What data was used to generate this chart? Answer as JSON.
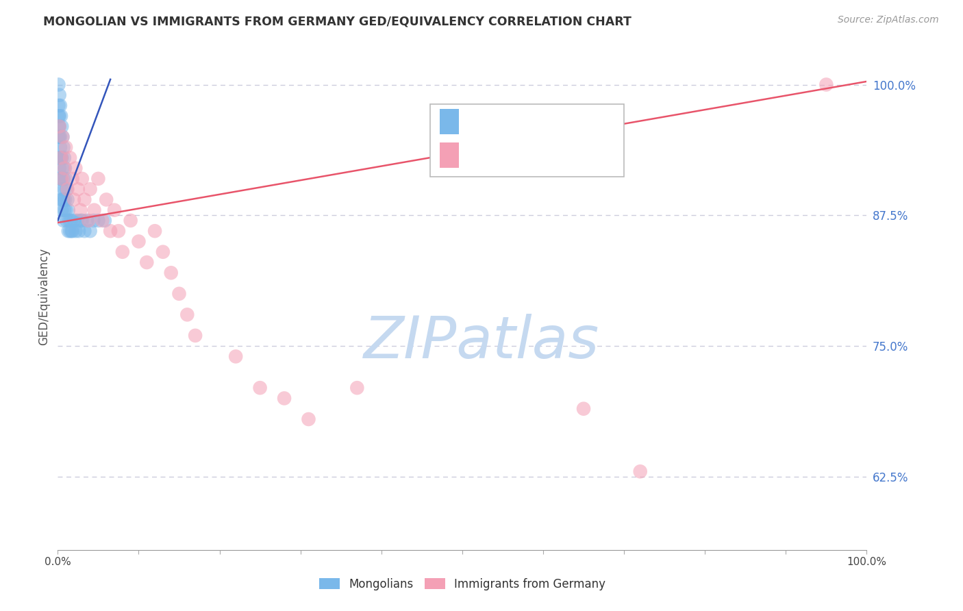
{
  "title": "MONGOLIAN VS IMMIGRANTS FROM GERMANY GED/EQUIVALENCY CORRELATION CHART",
  "source": "Source: ZipAtlas.com",
  "ylabel": "GED/Equivalency",
  "ytick_labels": [
    "62.5%",
    "75.0%",
    "87.5%",
    "100.0%"
  ],
  "ytick_values": [
    0.625,
    0.75,
    0.875,
    1.0
  ],
  "xlim": [
    0.0,
    1.0
  ],
  "ylim": [
    0.555,
    1.04
  ],
  "label_mongolians": "Mongolians",
  "label_germany": "Immigrants from Germany",
  "color_blue": "#7ab8ea",
  "color_pink": "#f4a0b5",
  "color_blue_line": "#3355bb",
  "color_pink_line": "#e8546a",
  "color_ytick": "#4477cc",
  "color_title": "#333333",
  "color_source": "#999999",
  "background_color": "#ffffff",
  "grid_color": "#ccccdd",
  "watermark_color": "#c5d9f0",
  "mongolian_x": [
    0.001,
    0.001,
    0.001,
    0.001,
    0.001,
    0.002,
    0.002,
    0.002,
    0.002,
    0.002,
    0.002,
    0.003,
    0.003,
    0.003,
    0.003,
    0.003,
    0.004,
    0.004,
    0.004,
    0.004,
    0.005,
    0.005,
    0.005,
    0.005,
    0.006,
    0.006,
    0.006,
    0.007,
    0.007,
    0.007,
    0.007,
    0.008,
    0.008,
    0.008,
    0.009,
    0.009,
    0.01,
    0.01,
    0.011,
    0.011,
    0.012,
    0.013,
    0.013,
    0.014,
    0.015,
    0.016,
    0.017,
    0.018,
    0.02,
    0.022,
    0.024,
    0.026,
    0.028,
    0.03,
    0.033,
    0.036,
    0.04,
    0.044,
    0.05,
    0.058
  ],
  "mongolian_y": [
    1.0,
    0.98,
    0.97,
    0.96,
    0.95,
    0.99,
    0.97,
    0.95,
    0.93,
    0.92,
    0.96,
    0.98,
    0.95,
    0.93,
    0.91,
    0.94,
    0.97,
    0.93,
    0.91,
    0.89,
    0.96,
    0.93,
    0.9,
    0.88,
    0.95,
    0.92,
    0.89,
    0.94,
    0.91,
    0.89,
    0.87,
    0.93,
    0.9,
    0.88,
    0.92,
    0.89,
    0.91,
    0.88,
    0.9,
    0.87,
    0.89,
    0.88,
    0.86,
    0.87,
    0.86,
    0.87,
    0.86,
    0.86,
    0.87,
    0.86,
    0.87,
    0.86,
    0.87,
    0.87,
    0.86,
    0.87,
    0.86,
    0.87,
    0.87,
    0.87
  ],
  "germany_x": [
    0.002,
    0.004,
    0.005,
    0.006,
    0.008,
    0.01,
    0.012,
    0.015,
    0.018,
    0.02,
    0.022,
    0.025,
    0.028,
    0.03,
    0.033,
    0.038,
    0.04,
    0.045,
    0.05,
    0.055,
    0.06,
    0.065,
    0.07,
    0.075,
    0.08,
    0.09,
    0.1,
    0.11,
    0.12,
    0.13,
    0.14,
    0.15,
    0.16,
    0.17,
    0.22,
    0.25,
    0.28,
    0.31,
    0.37,
    0.65,
    0.72,
    0.95
  ],
  "germany_y": [
    0.96,
    0.93,
    0.91,
    0.95,
    0.92,
    0.94,
    0.9,
    0.93,
    0.91,
    0.89,
    0.92,
    0.9,
    0.88,
    0.91,
    0.89,
    0.87,
    0.9,
    0.88,
    0.91,
    0.87,
    0.89,
    0.86,
    0.88,
    0.86,
    0.84,
    0.87,
    0.85,
    0.83,
    0.86,
    0.84,
    0.82,
    0.8,
    0.78,
    0.76,
    0.74,
    0.71,
    0.7,
    0.68,
    0.71,
    0.69,
    0.63,
    1.0
  ],
  "blue_line_x": [
    0.0,
    0.065
  ],
  "blue_line_y": [
    0.87,
    1.005
  ],
  "pink_line_x": [
    0.0,
    1.0
  ],
  "pink_line_y": [
    0.868,
    1.003
  ]
}
